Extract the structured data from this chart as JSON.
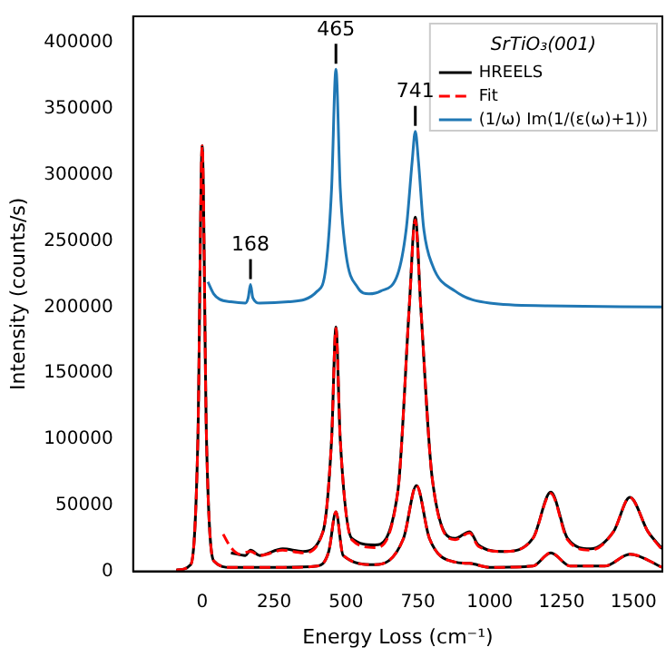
{
  "chart_data": {
    "type": "line",
    "xlabel": "Energy Loss (cm⁻¹)",
    "ylabel": "Intensity (counts/s)",
    "legend_title": "SrTiO₃(001)",
    "xlim": [
      -240,
      1600
    ],
    "ylim": [
      0,
      420000
    ],
    "xticks": [
      0,
      250,
      500,
      750,
      1000,
      1250,
      1500
    ],
    "yticks": [
      0,
      50000,
      100000,
      150000,
      200000,
      250000,
      300000,
      350000,
      400000
    ],
    "grid": false,
    "legend": "top right",
    "marker": "none",
    "annotations": [
      {
        "text": "168",
        "x": 168,
        "y": 217000
      },
      {
        "text": "465",
        "x": 465,
        "y": 380000
      },
      {
        "text": "741",
        "x": 741,
        "y": 333000
      }
    ],
    "series": [
      {
        "name": "HREELS",
        "color": "#000000",
        "line_style": "solid",
        "x": [
          100,
          150,
          168,
          200,
          280,
          350,
          420,
          450,
          465,
          480,
          520,
          600,
          680,
          720,
          741,
          760,
          800,
          880,
          930,
          960,
          1050,
          1150,
          1212,
          1270,
          1350,
          1430,
          1487,
          1550,
          1600
        ],
        "values": [
          14000,
          12000,
          16000,
          12000,
          17000,
          15000,
          30000,
          100000,
          185000,
          100000,
          25000,
          20000,
          60000,
          200000,
          268000,
          200000,
          70000,
          25000,
          30000,
          20000,
          15000,
          25000,
          60000,
          25000,
          17000,
          30000,
          56000,
          30000,
          17000
        ]
      },
      {
        "name": "Fit",
        "color": "#ff0000",
        "line_style": "dashed",
        "x": [
          73,
          100,
          130,
          168,
          200,
          280,
          350,
          420,
          450,
          465,
          480,
          520,
          600,
          680,
          720,
          741,
          760,
          800,
          880,
          930,
          960,
          1050,
          1150,
          1212,
          1270,
          1350,
          1430,
          1487,
          1550,
          1600
        ],
        "values": [
          28000,
          18000,
          13000,
          15000,
          12000,
          16000,
          14000,
          30000,
          100000,
          184000,
          100000,
          24000,
          18000,
          60000,
          200000,
          266000,
          200000,
          70000,
          24000,
          29000,
          19000,
          15000,
          25000,
          59000,
          24000,
          16000,
          30000,
          56000,
          30000,
          16000
        ]
      },
      {
        "color": "#000000",
        "line_style": "solid",
        "x": [
          -90,
          -40,
          -15,
          0,
          15,
          40,
          100,
          168,
          280,
          400,
          440,
          465,
          490,
          600,
          700,
          745,
          790,
          880,
          930,
          1000,
          1150,
          1212,
          1280,
          1400,
          1487,
          1600
        ],
        "values": [
          1000,
          5000,
          100000,
          322000,
          100000,
          8000,
          3000,
          3000,
          3000,
          4000,
          15000,
          45000,
          12000,
          5000,
          25000,
          65000,
          25000,
          7000,
          6000,
          3000,
          4000,
          14000,
          4000,
          4000,
          13000,
          3000
        ]
      },
      {
        "color": "#ff0000",
        "line_style": "dashed",
        "x": [
          -90,
          -40,
          -15,
          0,
          15,
          40,
          100,
          168,
          280,
          400,
          440,
          465,
          490,
          600,
          700,
          745,
          790,
          880,
          930,
          1000,
          1150,
          1212,
          1280,
          1400,
          1487,
          1600
        ],
        "values": [
          1000,
          5000,
          100000,
          322000,
          100000,
          8000,
          3000,
          3000,
          3000,
          4000,
          15000,
          45000,
          12000,
          5000,
          25000,
          65000,
          25000,
          7000,
          6000,
          3000,
          4000,
          14000,
          4000,
          4000,
          13000,
          3000
        ]
      },
      {
        "name": "(1/ω) Im(1/(ε(ω)+1))",
        "color": "#1f77b4",
        "line_style": "solid",
        "x": [
          20,
          40,
          60,
          100,
          150,
          160,
          168,
          176,
          200,
          300,
          400,
          430,
          450,
          465,
          480,
          500,
          540,
          580,
          620,
          680,
          710,
          730,
          741,
          752,
          770,
          800,
          880,
          1000,
          1200,
          1600
        ],
        "values": [
          219000,
          210000,
          206000,
          204000,
          203000,
          207000,
          217000,
          207000,
          203000,
          204000,
          212000,
          230000,
          290000,
          380000,
          290000,
          240000,
          215000,
          210000,
          212000,
          225000,
          260000,
          310000,
          333000,
          310000,
          260000,
          232000,
          212000,
          203000,
          201000,
          200000
        ]
      }
    ]
  }
}
